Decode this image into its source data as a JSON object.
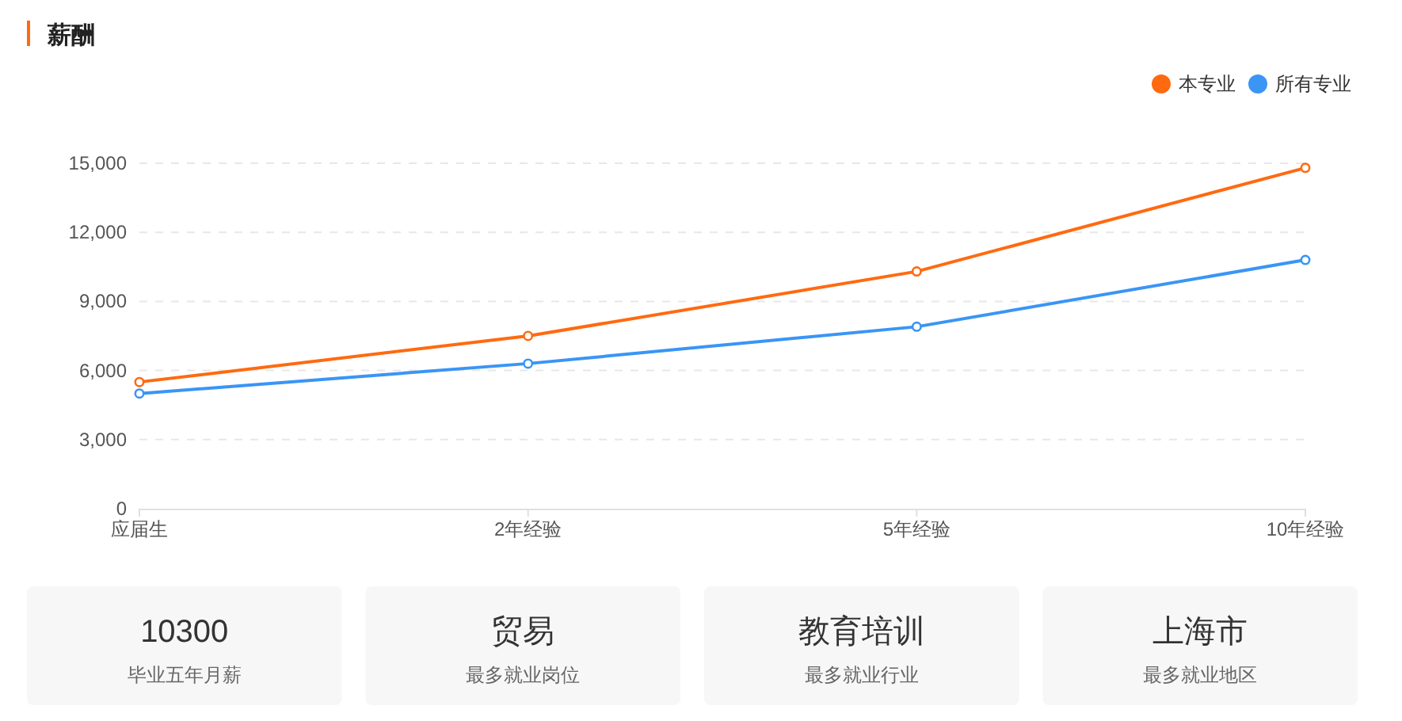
{
  "chart_data": [
    {
      "type": "line",
      "title": "薪酬",
      "categories": [
        "应届生",
        "2年经验",
        "5年经验",
        "10年经验"
      ],
      "series": [
        {
          "name": "本专业",
          "color": "#ff6a10",
          "values": [
            5500,
            7500,
            10300,
            14800
          ]
        },
        {
          "name": "所有专业",
          "color": "#3a95f5",
          "values": [
            5000,
            6300,
            7900,
            10800
          ]
        }
      ],
      "ylim": [
        0,
        15000
      ],
      "yticks": [
        0,
        {
          "value": 3000,
          "label": "3,000"
        },
        {
          "value": 6000,
          "label": "6,000"
        },
        {
          "value": 9000,
          "label": "9,000"
        },
        {
          "value": 12000,
          "label": "12,000"
        },
        {
          "value": 15000,
          "label": "15,000"
        }
      ],
      "grid": "y",
      "legend": "top right",
      "marker": "circle",
      "line_style": "solid"
    },
    {
      "type": "other",
      "title": "10300",
      "subtitle": "毕业五年月薪"
    },
    {
      "type": "other",
      "title": "贸易",
      "subtitle": "最多就业岗位"
    },
    {
      "type": "other",
      "title": "教育培训",
      "subtitle": "最多就业行业"
    },
    {
      "type": "other",
      "title": "上海市",
      "subtitle": "最多就业地区"
    }
  ]
}
